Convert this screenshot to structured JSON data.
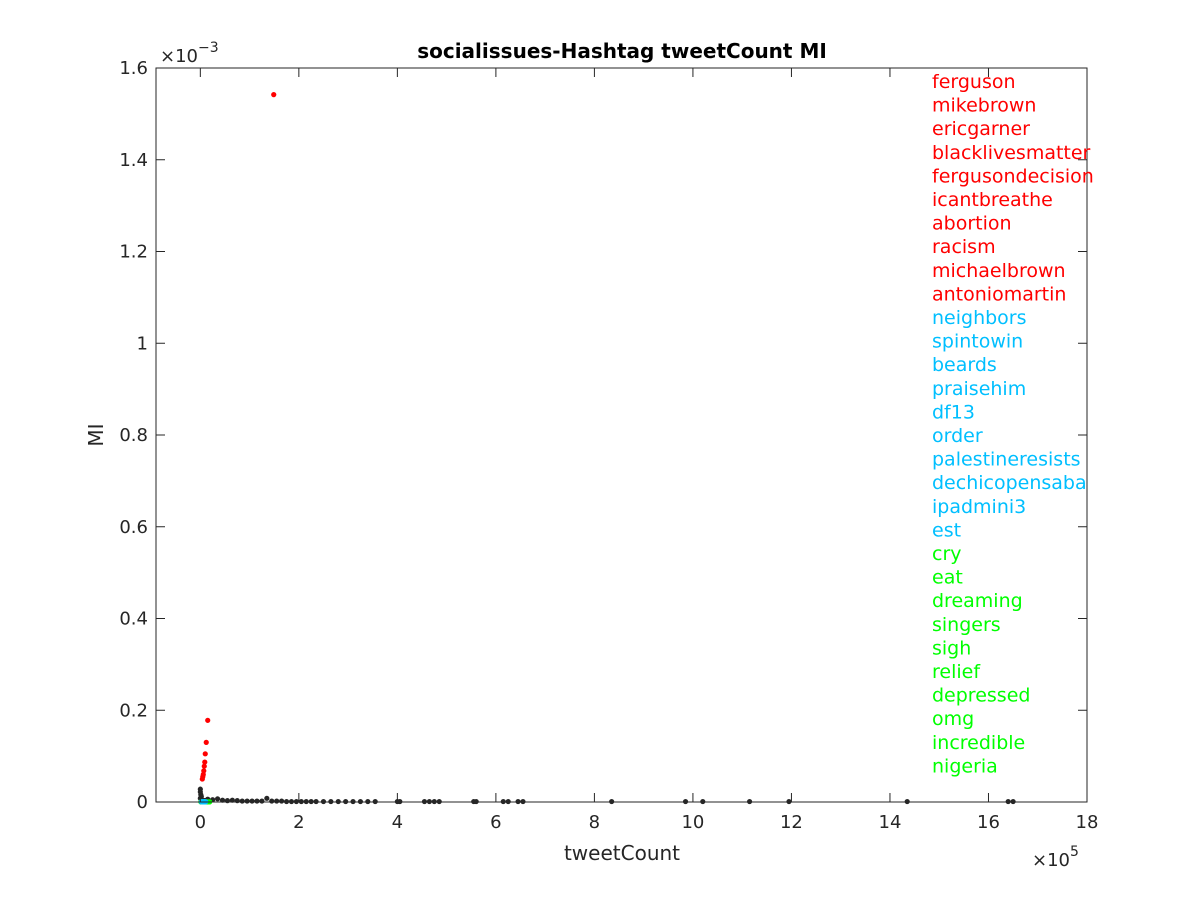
{
  "chart_data": {
    "type": "scatter",
    "title": "socialissues-Hashtag tweetCount MI",
    "xlabel": "tweetCount",
    "ylabel": "MI",
    "x_exponent_label": "×10",
    "x_exponent_power": "5",
    "y_exponent_label": "×10",
    "y_exponent_power": "−3",
    "x_scale": 100000,
    "y_scale": 0.001,
    "xlim": [
      -0.9,
      18
    ],
    "ylim": [
      0,
      1.6
    ],
    "xticks": [
      0,
      2,
      4,
      6,
      8,
      10,
      12,
      14,
      16,
      18
    ],
    "xtick_labels": [
      "0",
      "2",
      "4",
      "6",
      "8",
      "10",
      "12",
      "14",
      "16",
      "18"
    ],
    "yticks": [
      0,
      0.2,
      0.4,
      0.6,
      0.8,
      1.0,
      1.2,
      1.4,
      1.6
    ],
    "ytick_labels": [
      "0",
      "0.2",
      "0.4",
      "0.6",
      "0.8",
      "1",
      "1.2",
      "1.4",
      "1.6"
    ],
    "grid": false,
    "legend_position": "right, inside plot area",
    "colors": {
      "red": "#ff0000",
      "cyan": "#00bfff",
      "green": "#00ff00",
      "black": "#262626",
      "axis": "#262626"
    },
    "series": [
      {
        "color": "#ff0000",
        "labels": [
          "ferguson",
          "mikebrown",
          "ericgarner",
          "blacklivesmatter",
          "fergusondecision",
          "icantbreathe",
          "abortion",
          "racism",
          "michaelbrown",
          "antoniomartin"
        ],
        "points": [
          [
            1.49,
            1.542
          ],
          [
            0.15,
            0.178
          ],
          [
            0.12,
            0.13
          ],
          [
            0.1,
            0.105
          ],
          [
            0.09,
            0.087
          ],
          [
            0.08,
            0.078
          ],
          [
            0.07,
            0.068
          ],
          [
            0.06,
            0.06
          ],
          [
            0.05,
            0.055
          ],
          [
            0.04,
            0.05
          ]
        ]
      },
      {
        "color": "#00bfff",
        "labels": [
          "neighbors",
          "spintowin",
          "beards",
          "praisehim",
          "df13",
          "order",
          "palestineresists",
          "dechicopensaba",
          "ipadmini3",
          "est"
        ],
        "points": [
          [
            0.02,
            0.0005
          ],
          [
            0.04,
            0.0005
          ],
          [
            0.06,
            0.0005
          ],
          [
            0.08,
            0.0005
          ],
          [
            0.1,
            0.0005
          ],
          [
            0.05,
            0.0006
          ],
          [
            0.03,
            0.0004
          ],
          [
            0.07,
            0.0004
          ],
          [
            0.09,
            0.0005
          ],
          [
            0.11,
            0.0005
          ]
        ]
      },
      {
        "color": "#00ff00",
        "labels": [
          "cry",
          "eat",
          "dreaming",
          "singers",
          "sigh",
          "relief",
          "depressed",
          "omg",
          "incredible",
          "nigeria"
        ],
        "points": [
          [
            0.01,
            0.0003
          ],
          [
            0.03,
            0.0003
          ],
          [
            0.05,
            0.0003
          ],
          [
            0.07,
            0.0003
          ],
          [
            0.09,
            0.0003
          ],
          [
            0.11,
            0.0003
          ],
          [
            0.13,
            0.0003
          ],
          [
            0.15,
            0.0003
          ],
          [
            0.17,
            0.0003
          ],
          [
            0.19,
            0.0003
          ]
        ]
      },
      {
        "color": "#262626",
        "points": [
          [
            0.0,
            0.028
          ],
          [
            0.0,
            0.022
          ],
          [
            0.01,
            0.016
          ],
          [
            0.02,
            0.012
          ],
          [
            0.0,
            0.008
          ],
          [
            0.03,
            0.005
          ],
          [
            0.05,
            0.004
          ],
          [
            0.08,
            0.003
          ],
          [
            0.1,
            0.003
          ],
          [
            0.15,
            0.006
          ],
          [
            0.25,
            0.005
          ],
          [
            0.35,
            0.007
          ],
          [
            0.45,
            0.004
          ],
          [
            0.55,
            0.003
          ],
          [
            0.65,
            0.004
          ],
          [
            0.75,
            0.003
          ],
          [
            0.85,
            0.002
          ],
          [
            0.95,
            0.002
          ],
          [
            1.05,
            0.002
          ],
          [
            1.15,
            0.002
          ],
          [
            1.25,
            0.002
          ],
          [
            1.35,
            0.008
          ],
          [
            1.45,
            0.002
          ],
          [
            1.55,
            0.002
          ],
          [
            1.65,
            0.002
          ],
          [
            1.75,
            0.001
          ],
          [
            1.85,
            0.001
          ],
          [
            1.95,
            0.001
          ],
          [
            2.05,
            0.001
          ],
          [
            2.15,
            0.001
          ],
          [
            2.25,
            0.001
          ],
          [
            2.35,
            0.001
          ],
          [
            2.5,
            0.001
          ],
          [
            2.65,
            0.001
          ],
          [
            2.8,
            0.001
          ],
          [
            2.95,
            0.001
          ],
          [
            3.1,
            0.001
          ],
          [
            3.25,
            0.001
          ],
          [
            3.4,
            0.001
          ],
          [
            3.55,
            0.001
          ],
          [
            4.0,
            0.001
          ],
          [
            4.05,
            0.001
          ],
          [
            4.55,
            0.001
          ],
          [
            4.65,
            0.001
          ],
          [
            4.75,
            0.001
          ],
          [
            4.85,
            0.001
          ],
          [
            5.55,
            0.001
          ],
          [
            5.6,
            0.001
          ],
          [
            6.15,
            0.001
          ],
          [
            6.25,
            0.001
          ],
          [
            6.45,
            0.001
          ],
          [
            6.55,
            0.001
          ],
          [
            8.35,
            0.001
          ],
          [
            9.85,
            0.001
          ],
          [
            10.2,
            0.001
          ],
          [
            11.15,
            0.001
          ],
          [
            11.95,
            0.001
          ],
          [
            14.35,
            0.001
          ],
          [
            16.4,
            0.001
          ],
          [
            16.5,
            0.001
          ]
        ]
      }
    ]
  }
}
